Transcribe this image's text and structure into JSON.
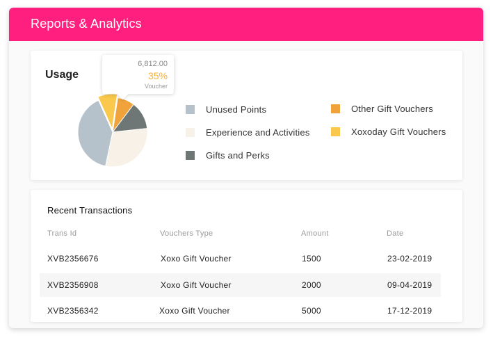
{
  "header": {
    "title": "Reports & Analytics"
  },
  "usage": {
    "title": "Usage",
    "tooltip": {
      "value": "6,812.00",
      "percent": "35%",
      "label": "Voucher"
    },
    "chart_data": {
      "type": "pie",
      "slices": [
        {
          "label": "Xoxoday Gift Vouchers",
          "value": 9,
          "color": "#f9c84c"
        },
        {
          "label": "Other Gift Vouchers",
          "value": 8,
          "color": "#f0a33a"
        },
        {
          "label": "Gifts and Perks",
          "value": 13,
          "color": "#6f7676"
        },
        {
          "label": "Experience and Activities",
          "value": 30,
          "color": "#f8f1e8"
        },
        {
          "label": "Unused Points",
          "value": 40,
          "color": "#b6c2cb"
        }
      ]
    },
    "legend": [
      {
        "label": "Unused Points",
        "color": "#b6c2cb"
      },
      {
        "label": "Experience and Activities",
        "color": "#f8f1e8"
      },
      {
        "label": "Gifts and Perks",
        "color": "#6f7676"
      },
      {
        "label": "Other Gift Vouchers",
        "color": "#f0a33a"
      },
      {
        "label": "Xoxoday Gift Vouchers",
        "color": "#f9c84c"
      }
    ]
  },
  "transactions": {
    "title": "Recent Transactions",
    "columns": [
      "Trans Id",
      "Vouchers Type",
      "Amount",
      "Date"
    ],
    "rows": [
      {
        "id": "XVB2356676",
        "type": "Xoxo Gift Voucher",
        "amount": "1500",
        "date": "23-02-2019"
      },
      {
        "id": "XVB2356908",
        "type": "Xoxo Gift Voucher",
        "amount": "2000",
        "date": "09-04-2019"
      },
      {
        "id": "XVB2356342",
        "type": "Xoxo Gift Voucher",
        "amount": "5000",
        "date": "17-12-2019"
      }
    ]
  }
}
